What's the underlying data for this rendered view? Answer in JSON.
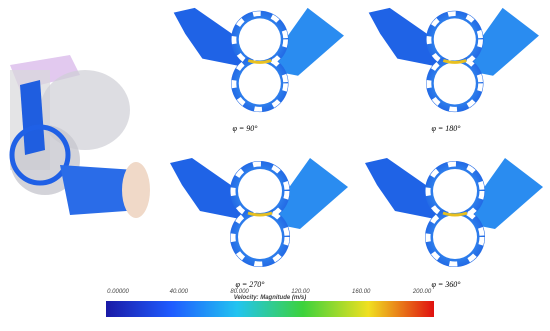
{
  "panels": [
    {
      "label": "φ = 90°"
    },
    {
      "label": "φ = 180°"
    },
    {
      "label": "φ = 270°"
    },
    {
      "label": "φ = 360°"
    }
  ],
  "colorbar": {
    "title": "Velocity: Magnitude (m/s)",
    "ticks": [
      "0.00000",
      "40.000",
      "80.000",
      "120.00",
      "160.00",
      "200.00"
    ]
  }
}
